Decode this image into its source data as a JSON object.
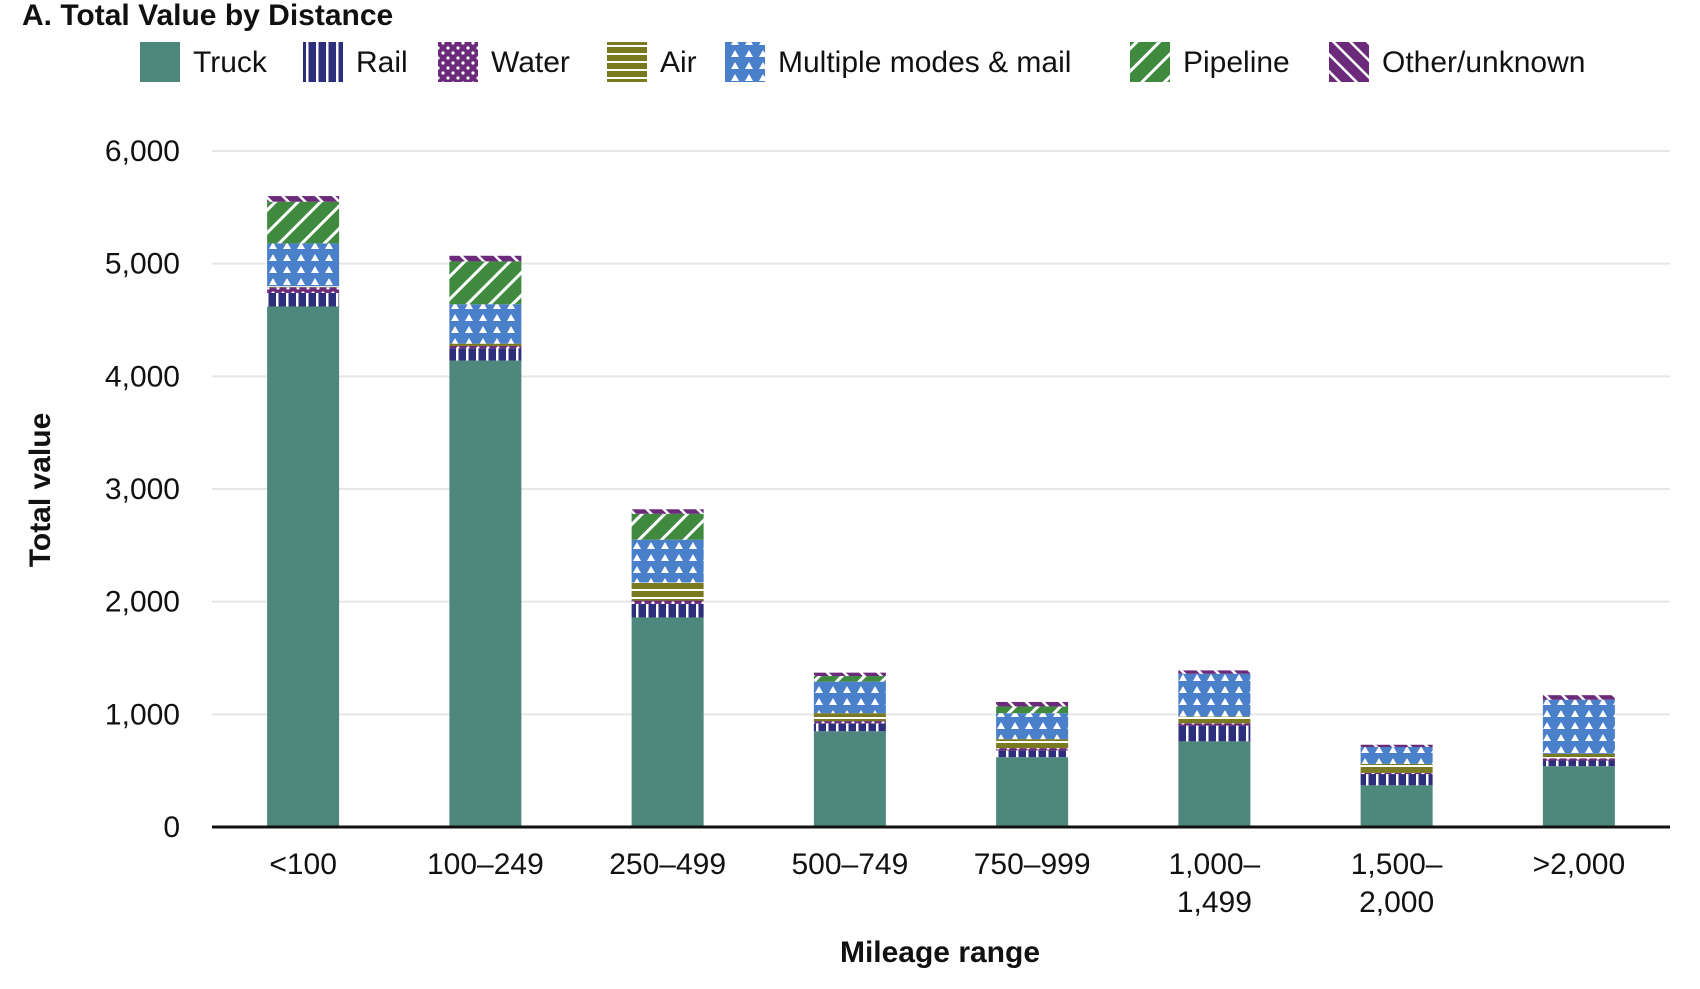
{
  "chart_data": {
    "type": "bar",
    "stacked": true,
    "title": "A.  Total Value by Distance",
    "xlabel": "Mileage range",
    "ylabel": "Total value",
    "ylim": [
      0,
      6000
    ],
    "yticks": [
      0,
      1000,
      2000,
      3000,
      4000,
      5000,
      6000
    ],
    "ytick_labels": [
      "0",
      "1,000",
      "2,000",
      "3,000",
      "4,000",
      "5,000",
      "6,000"
    ],
    "grid": true,
    "legend_position": "top",
    "categories": [
      "<100",
      "100–249",
      "250–499",
      "500–749",
      "750–999",
      "1,000–\n1,499",
      "1,500–\n2,000",
      ">2,000"
    ],
    "series": [
      {
        "name": "Truck",
        "color": "#4e877c",
        "pattern": "solid",
        "values": [
          4620,
          4140,
          1860,
          850,
          620,
          760,
          370,
          540
        ]
      },
      {
        "name": "Rail",
        "color": "#2e2f7c",
        "pattern": "vertical-stripes",
        "values": [
          120,
          110,
          120,
          70,
          60,
          140,
          100,
          50
        ]
      },
      {
        "name": "Water",
        "color": "#6b2a7a",
        "pattern": "dots",
        "values": [
          50,
          20,
          30,
          20,
          20,
          20,
          10,
          20
        ]
      },
      {
        "name": "Air",
        "color": "#7a7a22",
        "pattern": "horizontal-stripes",
        "values": [
          10,
          20,
          160,
          70,
          80,
          60,
          80,
          40
        ]
      },
      {
        "name": "Multiple modes & mail",
        "color": "#4a7fc9",
        "pattern": "triangles",
        "values": [
          380,
          350,
          380,
          280,
          230,
          380,
          150,
          480
        ]
      },
      {
        "name": "Pipeline",
        "color": "#3f8a3f",
        "pattern": "diagonal-down",
        "values": [
          370,
          380,
          230,
          50,
          60,
          0,
          0,
          0
        ]
      },
      {
        "name": "Other/unknown",
        "color": "#6b2a7a",
        "pattern": "diagonal-up",
        "values": [
          50,
          50,
          40,
          30,
          40,
          30,
          20,
          40
        ]
      }
    ]
  }
}
